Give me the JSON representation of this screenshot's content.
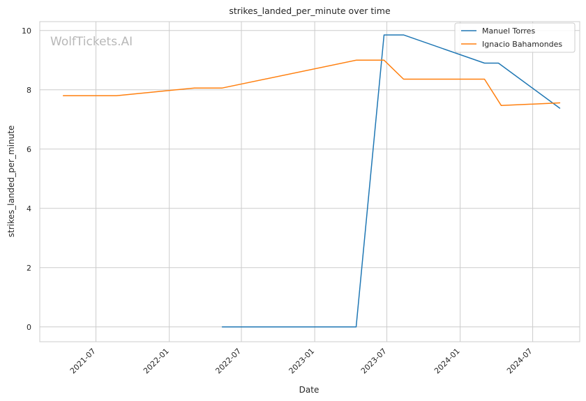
{
  "chart_data": {
    "type": "line",
    "title": "strikes_landed_per_minute over time",
    "xlabel": "Date",
    "ylabel": "strikes_landed_per_minute",
    "watermark": "WolfTickets.AI",
    "x_ticks": [
      "2021-07",
      "2022-01",
      "2022-07",
      "2023-01",
      "2023-07",
      "2024-01",
      "2024-07"
    ],
    "y_ticks": [
      0,
      2,
      4,
      6,
      8,
      10
    ],
    "xlim": [
      "2021-02-10",
      "2024-10-27"
    ],
    "ylim": [
      -0.5,
      10.3
    ],
    "grid": true,
    "legend_position": "upper right",
    "colors": {
      "Manuel Torres": "#1f77b4",
      "Ignacio Bahamondes": "#ff7f0e"
    },
    "series": [
      {
        "name": "Manuel Torres",
        "x": [
          "2022-05-14",
          "2023-04-15",
          "2023-06-24",
          "2023-08-12",
          "2024-03-02",
          "2024-04-06",
          "2024-09-07"
        ],
        "y": [
          0,
          0,
          9.85,
          9.85,
          8.9,
          8.9,
          7.38
        ]
      },
      {
        "name": "Ignacio Bahamondes",
        "x": [
          "2021-04-10",
          "2021-08-21",
          "2022-03-05",
          "2022-05-14",
          "2023-04-15",
          "2023-06-24",
          "2023-08-12",
          "2024-03-02",
          "2024-04-13",
          "2024-09-07"
        ],
        "y": [
          7.8,
          7.8,
          8.06,
          8.06,
          9.0,
          9.0,
          8.36,
          8.36,
          7.47,
          7.56
        ]
      }
    ]
  }
}
